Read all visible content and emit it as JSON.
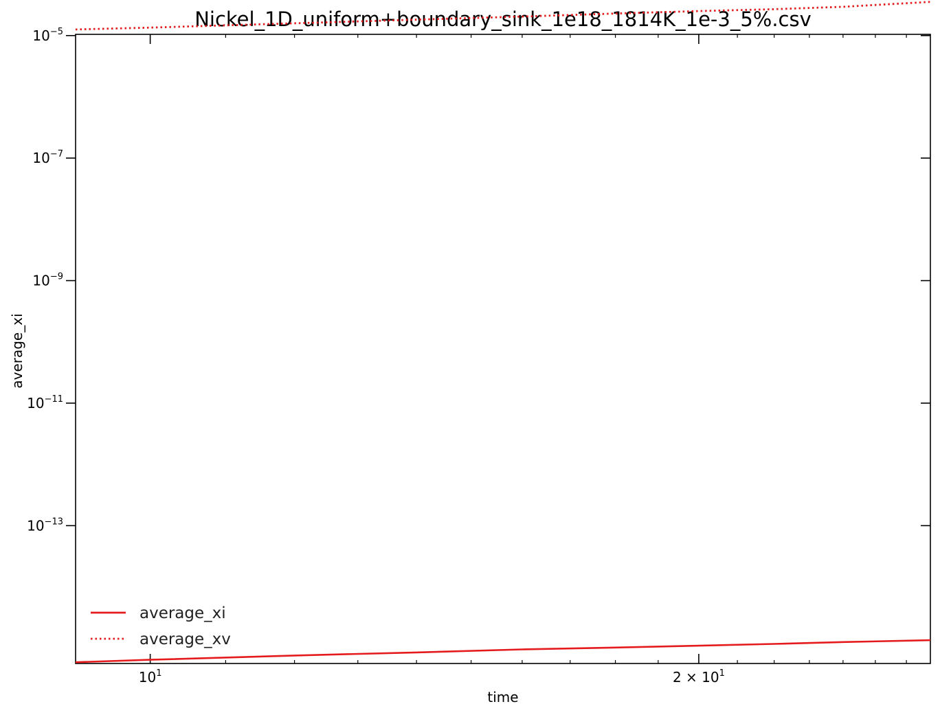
{
  "chart_data": {
    "type": "line",
    "title": "Nickel_1D_uniform+boundary_sink_1e18_1814K_1e-3_5%.csv",
    "xlabel": "time",
    "ylabel": "average_xi",
    "xscale": "log",
    "yscale": "log",
    "xlim": [
      9.1,
      26.8
    ],
    "ylim_log10": [
      -15.25,
      -4.98
    ],
    "x_ticks": [
      {
        "value": 10,
        "base": "10",
        "exp": "1",
        "prefix": ""
      },
      {
        "value": 20,
        "base": "10",
        "exp": "1",
        "prefix": "2 × "
      }
    ],
    "y_ticks": [
      {
        "log10": -5,
        "base": "10",
        "exp": "−5"
      },
      {
        "log10": -7,
        "base": "10",
        "exp": "−7"
      },
      {
        "log10": -9,
        "base": "10",
        "exp": "−9"
      },
      {
        "log10": -11,
        "base": "10",
        "exp": "−11"
      },
      {
        "log10": -13,
        "base": "10",
        "exp": "−13"
      }
    ],
    "legend_position": "lower-left",
    "series": [
      {
        "name": "average_xi",
        "style": "solid",
        "color": "#e41a1c",
        "x": [
          9.1,
          10,
          12,
          14,
          16,
          18,
          20,
          22,
          24,
          26.8
        ],
        "log10_y": [
          -15.23,
          -15.19,
          -15.12,
          -15.07,
          -15.02,
          -14.99,
          -14.96,
          -14.93,
          -14.9,
          -14.87
        ]
      },
      {
        "name": "average_xv",
        "style": "dotted",
        "color": "#e41a1c",
        "x": [
          9.1,
          10,
          12,
          14,
          16,
          18,
          20,
          22,
          24,
          26.8
        ],
        "log10_y": [
          -4.9,
          -4.87,
          -4.8,
          -4.74,
          -4.69,
          -4.64,
          -4.6,
          -4.57,
          -4.53,
          -4.45
        ]
      }
    ]
  }
}
